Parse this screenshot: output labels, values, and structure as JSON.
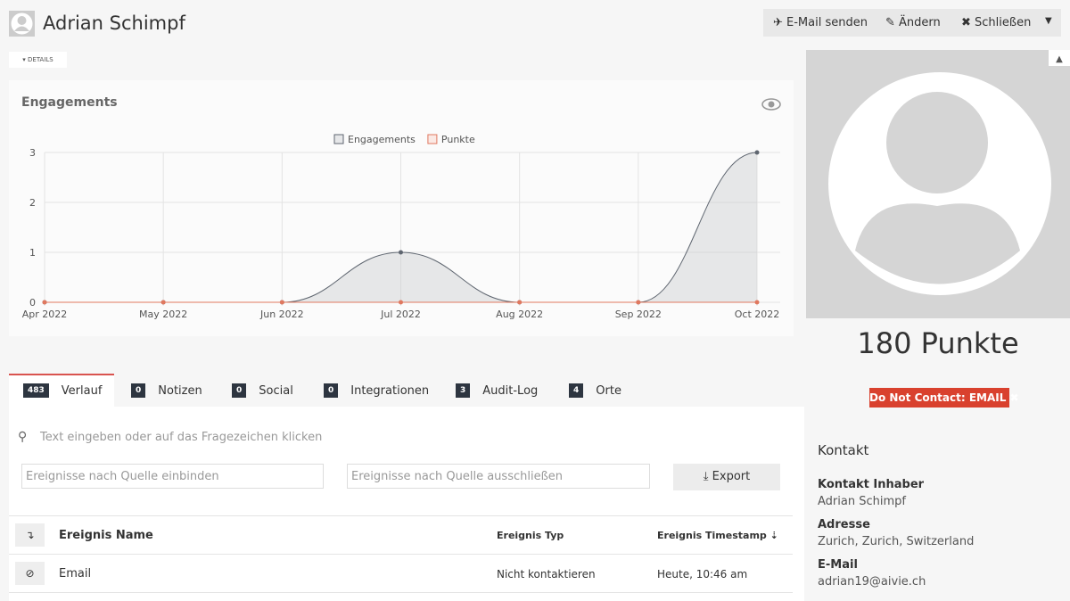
{
  "header": {
    "name": "Adrian Schimpf",
    "buttons": [
      "E-Mail senden",
      "Ändern",
      "Schließen"
    ]
  },
  "details_toggle": "DETAILS",
  "chart_data": {
    "type": "line",
    "title": "Engagements",
    "categories": [
      "Apr 2022",
      "May 2022",
      "Jun 2022",
      "Jul 2022",
      "Aug 2022",
      "Sep 2022",
      "Oct 2022"
    ],
    "series": [
      {
        "name": "Engagements",
        "color": "#5f6670",
        "values": [
          0,
          0,
          0,
          1,
          0,
          0,
          3
        ]
      },
      {
        "name": "Punkte",
        "color": "#e0785f",
        "values": [
          0,
          0,
          0,
          0,
          0,
          0,
          0
        ]
      }
    ],
    "ylim": [
      0,
      3
    ],
    "yticks": [
      0,
      1,
      2,
      3
    ],
    "grid": true,
    "legend": "top"
  },
  "tabs": [
    {
      "count": 483,
      "label": "Verlauf"
    },
    {
      "count": 0,
      "label": "Notizen"
    },
    {
      "count": 0,
      "label": "Social"
    },
    {
      "count": 0,
      "label": "Integrationen"
    },
    {
      "count": 3,
      "label": "Audit-Log"
    },
    {
      "count": 4,
      "label": "Orte"
    }
  ],
  "search_placeholder": "Text eingeben oder auf das Fragezeichen klicken",
  "filters": [
    "Ereignisse nach Quelle einbinden",
    "Ereignisse nach Quelle ausschließen"
  ],
  "export_button": "Export",
  "table": {
    "columns": [
      "Ereignis Name",
      "Ereignis Typ",
      "Ereignis Timestamp"
    ],
    "rows": [
      [
        "Email",
        "Nicht kontaktieren",
        "Heute, 10:46 am"
      ]
    ]
  },
  "sidebar": {
    "points": "180 Punkte",
    "dnc_badge": "Do Not Contact: EMAIL",
    "section": "Kontakt",
    "fields": [
      {
        "label": "Kontakt Inhaber",
        "value": "Adrian Schimpf"
      },
      {
        "label": "Adresse",
        "value": "Zurich, Zurich, Switzerland"
      },
      {
        "label": "E-Mail",
        "value": "adrian19@aivie.ch"
      }
    ]
  }
}
